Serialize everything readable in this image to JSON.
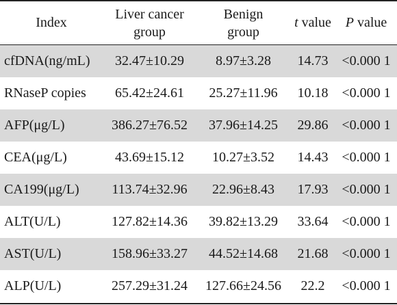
{
  "table": {
    "header": {
      "index": "Index",
      "liver_line1": "Liver cancer",
      "liver_line2": "group",
      "benign_line1": "Benign",
      "benign_line2": "group",
      "t_symbol": "t",
      "t_word": " value",
      "p_symbol": "P",
      "p_word": " value"
    },
    "rows": [
      {
        "index": "cfDNA(ng/mL)",
        "liver": "32.47±10.29",
        "benign": "8.97±3.28",
        "t": "14.73",
        "p": "<0.000 1"
      },
      {
        "index": "RNaseP copies",
        "liver": "65.42±24.61",
        "benign": "25.27±11.96",
        "t": "10.18",
        "p": "<0.000 1"
      },
      {
        "index": "AFP(μg/L)",
        "liver": "386.27±76.52",
        "benign": "37.96±14.25",
        "t": "29.86",
        "p": "<0.000 1"
      },
      {
        "index": "CEA(μg/L)",
        "liver": "43.69±15.12",
        "benign": "10.27±3.52",
        "t": "14.43",
        "p": "<0.000 1"
      },
      {
        "index": "CA199(μg/L)",
        "liver": "113.74±32.96",
        "benign": "22.96±8.43",
        "t": "17.93",
        "p": "<0.000 1"
      },
      {
        "index": "ALT(U/L)",
        "liver": "127.82±14.36",
        "benign": "39.82±13.29",
        "t": "33.64",
        "p": "<0.000 1"
      },
      {
        "index": "AST(U/L)",
        "liver": "158.96±33.27",
        "benign": "44.52±14.68",
        "t": "21.68",
        "p": "<0.000 1"
      },
      {
        "index": "ALP(U/L)",
        "liver": "257.29±31.24",
        "benign": "127.66±24.56",
        "t": "22.2",
        "p": "<0.000 1"
      }
    ]
  }
}
